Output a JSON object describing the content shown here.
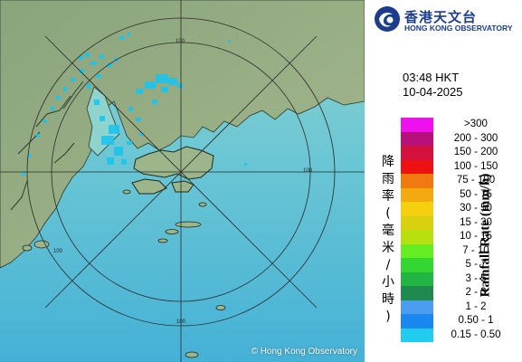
{
  "header": {
    "org_name_cn": "香港天文台",
    "org_name_en": "HONG KONG OBSERVATORY"
  },
  "timestamp": {
    "time": "03:48 HKT",
    "date": "10-04-2025"
  },
  "legend": {
    "title_cn": "降雨率(毫米/小時)",
    "title_en": "Rainfall Rate (mm/h)",
    "items": [
      {
        "label": ">300",
        "color": "#ee11ee"
      },
      {
        "label": "200 - 300",
        "color": "#b8107a"
      },
      {
        "label": "150 - 200",
        "color": "#d4103c"
      },
      {
        "label": "100 - 150",
        "color": "#ee1111"
      },
      {
        "label": "75 - 100",
        "color": "#f07a10"
      },
      {
        "label": "50 - 75",
        "color": "#f2aa10"
      },
      {
        "label": "30 - 50",
        "color": "#f5d010"
      },
      {
        "label": "15 - 30",
        "color": "#d8d010"
      },
      {
        "label": "10 - 15",
        "color": "#b8e010"
      },
      {
        "label": "7 - 10",
        "color": "#66ee22"
      },
      {
        "label": "5 - 7",
        "color": "#33d633"
      },
      {
        "label": "3 - 5",
        "color": "#22b544"
      },
      {
        "label": "2 - 3",
        "color": "#1e8a4e"
      },
      {
        "label": "1 - 2",
        "color": "#4a9df0"
      },
      {
        "label": "0.50 - 1",
        "color": "#1a88ee"
      },
      {
        "label": "0.15 - 0.50",
        "color": "#22ccee"
      }
    ]
  },
  "map": {
    "range_ring_labels": [
      "100",
      "100",
      "100",
      "100"
    ],
    "copyright": "© Hong Kong Observatory"
  }
}
